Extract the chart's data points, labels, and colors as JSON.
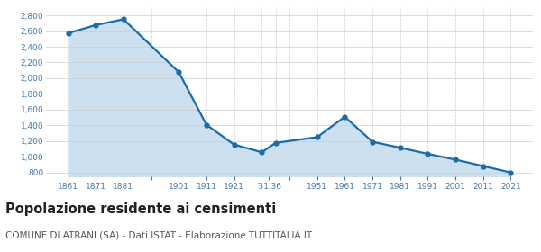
{
  "years": [
    1861,
    1871,
    1881,
    1901,
    1911,
    1921,
    1931,
    1936,
    1951,
    1961,
    1971,
    1981,
    1991,
    2001,
    2011,
    2021
  ],
  "values": [
    2573,
    2677,
    2751,
    2077,
    1407,
    1154,
    1057,
    1176,
    1249,
    1509,
    1190,
    1115,
    1036,
    963,
    881,
    799
  ],
  "x_tick_labels": [
    "1861",
    "1871",
    "1881",
    "",
    "1901",
    "1911",
    "1921",
    "'31'36",
    "",
    "1951",
    "1961",
    "1971",
    "1981",
    "1991",
    "2001",
    "2011",
    "2021"
  ],
  "line_color": "#1a6ca8",
  "fill_color": "#cce0f0",
  "marker_size": 3.5,
  "line_width": 1.6,
  "ylim": [
    750,
    2900
  ],
  "yticks": [
    800,
    1000,
    1200,
    1400,
    1600,
    1800,
    2000,
    2200,
    2400,
    2600,
    2800
  ],
  "title": "Popolazione residente ai censimenti",
  "title_fontsize": 10.5,
  "subtitle": "COMUNE DI ATRANI (SA) - Dati ISTAT - Elaborazione TUTTITALIA.IT",
  "subtitle_fontsize": 7.5,
  "background_color": "#ffffff",
  "grid_color": "#cccccc",
  "tick_label_color": "#4477aa",
  "title_color": "#222222",
  "subtitle_color": "#555555"
}
